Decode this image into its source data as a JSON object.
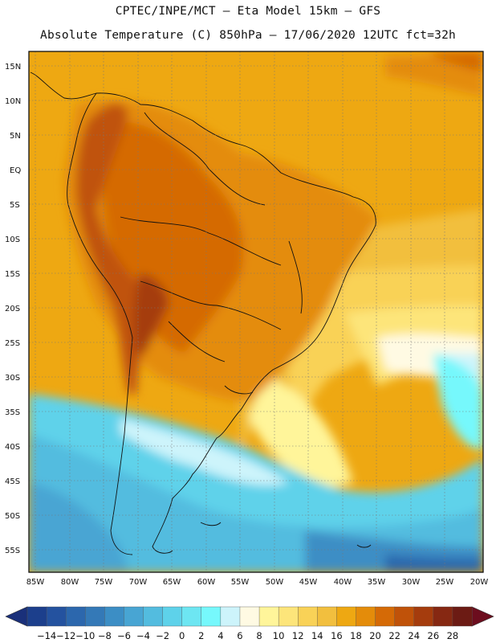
{
  "header": {
    "line1": "CPTEC/INPE/MCT –  Eta Model 15km – GFS",
    "line2": "Absolute Temperature (C) 850hPa – 17/06/2020 12UTC fct=32h"
  },
  "map": {
    "lat_labels": [
      "15N",
      "10N",
      "5N",
      "EQ",
      "5S",
      "10S",
      "15S",
      "20S",
      "25S",
      "30S",
      "35S",
      "40S",
      "45S",
      "50S",
      "55S"
    ],
    "lon_labels": [
      "85W",
      "80W",
      "75W",
      "70W",
      "65W",
      "60W",
      "55W",
      "50W",
      "45W",
      "40W",
      "35W",
      "30W",
      "25W",
      "20W"
    ]
  },
  "colorbar": {
    "labels": [
      "-14",
      "-12",
      "-10",
      "-8",
      "-6",
      "-4",
      "-2",
      "0",
      "2",
      "4",
      "6",
      "8",
      "10",
      "12",
      "14",
      "16",
      "18",
      "20",
      "22",
      "24",
      "26",
      "28"
    ],
    "colors": [
      "#1c3f8c",
      "#24529f",
      "#2c67ad",
      "#3479b7",
      "#3c8ec5",
      "#48a5d3",
      "#53bcdf",
      "#5ed2ea",
      "#6de6f2",
      "#76f8fc",
      "#cdf4fb",
      "#fffae3",
      "#fff59a",
      "#fde57a",
      "#f9d257",
      "#f2bf3e",
      "#eea812",
      "#e48c0a",
      "#d56a06",
      "#c05209",
      "#a53c0d",
      "#862812",
      "#6c1b14"
    ],
    "left_arrow_color": "#1a307a",
    "right_arrow_color": "#6c0d1e"
  },
  "palette": {
    "ocean_north": "#eea812",
    "ocean_mid": "#f9d257",
    "warm_land": "#e48c0a",
    "hot_land": "#d56a06",
    "andes": "#c05209",
    "cold_south": "#53bcdf",
    "very_cold": "#3c8ec5",
    "pale": "#fffae3",
    "light_cyan": "#cdf4fb"
  }
}
